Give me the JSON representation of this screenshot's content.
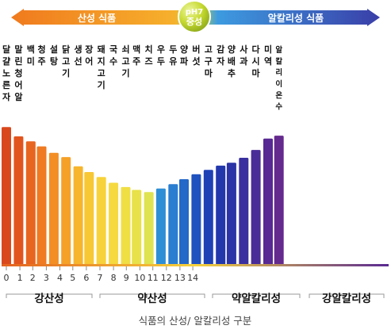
{
  "header": {
    "acid_label": "산성 식품",
    "alkaline_label": "알칼리성 식품",
    "center_top": "pH7",
    "center_bottom": "중성"
  },
  "chart_data": {
    "type": "bar",
    "categories": [
      "달걀노른자",
      "말린청어알",
      "백미",
      "청주",
      "설탕",
      "닭고기",
      "생선",
      "장어",
      "돼지고기",
      "국수",
      "쇠고기",
      "맥주",
      "치즈",
      "우두",
      "두유",
      "양파",
      "버섯",
      "고구마",
      "감자",
      "양배추",
      "사과",
      "다시마",
      "미역",
      "알칼리이온수"
    ],
    "values": [
      0.35,
      1.0,
      1.35,
      1.7,
      2.15,
      2.45,
      3.1,
      3.5,
      3.85,
      4.25,
      4.55,
      4.75,
      4.9,
      4.65,
      4.35,
      4.0,
      3.65,
      3.35,
      3.05,
      2.85,
      2.5,
      1.95,
      1.15,
      0.95
    ],
    "positions": [
      0,
      0.9,
      1.8,
      2.6,
      3.5,
      4.4,
      5.3,
      6.1,
      7.0,
      7.9,
      8.8,
      9.6,
      10.5,
      11.4,
      12.3,
      13.1,
      14.0,
      14.9,
      15.8,
      16.6,
      17.5,
      18.4,
      19.3,
      20.1
    ],
    "ylim": [
      0,
      10
    ],
    "xticks": [
      "0",
      "1",
      "2",
      "3",
      "4",
      "5",
      "6",
      "7",
      "8",
      "9",
      "10",
      "11",
      "12",
      "13",
      "14"
    ],
    "xtick_positions": [
      0,
      2.0,
      3.9,
      5.9,
      7.9,
      9.8,
      11.8,
      13.8,
      15.8,
      17.7,
      19.7,
      21.6,
      23.6,
      25.6,
      27.5
    ],
    "ranges": [
      "강산성",
      "약산성",
      "약알칼리성",
      "강알칼리성"
    ],
    "caption": "식품의 산성/ 알칼리성 구분",
    "colors": [
      "#d9481c",
      "#e2541d",
      "#e86520",
      "#ef7a22",
      "#f28e24",
      "#f5a127",
      "#f7b52d",
      "#f8c734",
      "#f8d23a",
      "#f5d93f",
      "#f0de45",
      "#e8e14a",
      "#dfe34f",
      "#2f8fd6",
      "#2a7ed1",
      "#2468c8",
      "#1f52bf",
      "#1f41b6",
      "#2337ad",
      "#2b33a6",
      "#3a2f9f",
      "#4a2c98",
      "#582993",
      "#652a8e"
    ]
  }
}
